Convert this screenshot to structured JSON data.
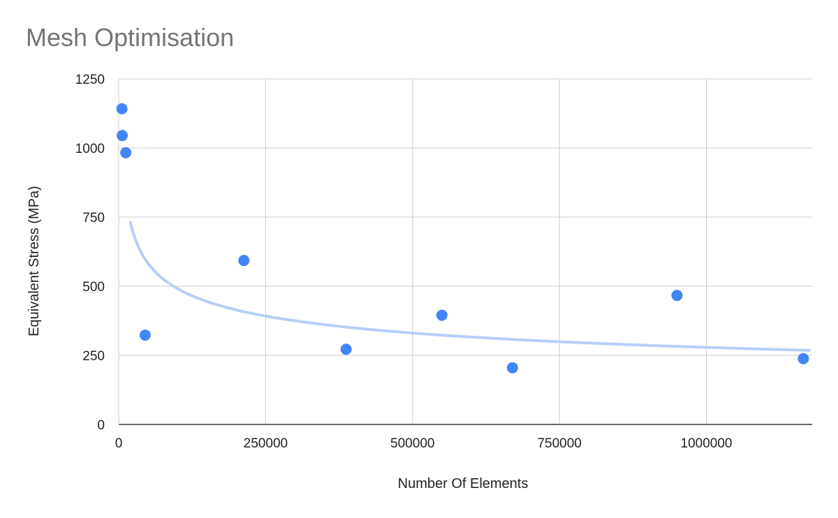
{
  "chart_data": {
    "type": "scatter",
    "title": "Mesh Optimisation",
    "xlabel": "Number Of Elements",
    "ylabel": "Equivalent Stress (MPa)",
    "xlim": [
      0,
      1180000
    ],
    "ylim": [
      0,
      1250
    ],
    "x_ticks": [
      "0",
      "250000",
      "500000",
      "750000",
      "1000000"
    ],
    "x_tick_values": [
      0,
      250000,
      500000,
      750000,
      1000000
    ],
    "y_ticks": [
      "0",
      "250",
      "500",
      "750",
      "1000",
      "1250"
    ],
    "y_tick_values": [
      0,
      250,
      500,
      750,
      1000,
      1250
    ],
    "grid": true,
    "legend": "none",
    "point_color": "#4285f4",
    "trendline": {
      "type": "power",
      "color": "#b6cff8",
      "x_start": 20000,
      "x_end": 1175000,
      "y_at_start": 730,
      "y_at_end": 268
    },
    "series": [
      {
        "x": [
          5500,
          6000,
          12000,
          45000,
          213000,
          387000,
          550000,
          670000,
          950000,
          1165000
        ],
        "y": [
          1142,
          1045,
          983,
          323,
          593,
          272,
          395,
          205,
          467,
          238
        ]
      }
    ]
  }
}
